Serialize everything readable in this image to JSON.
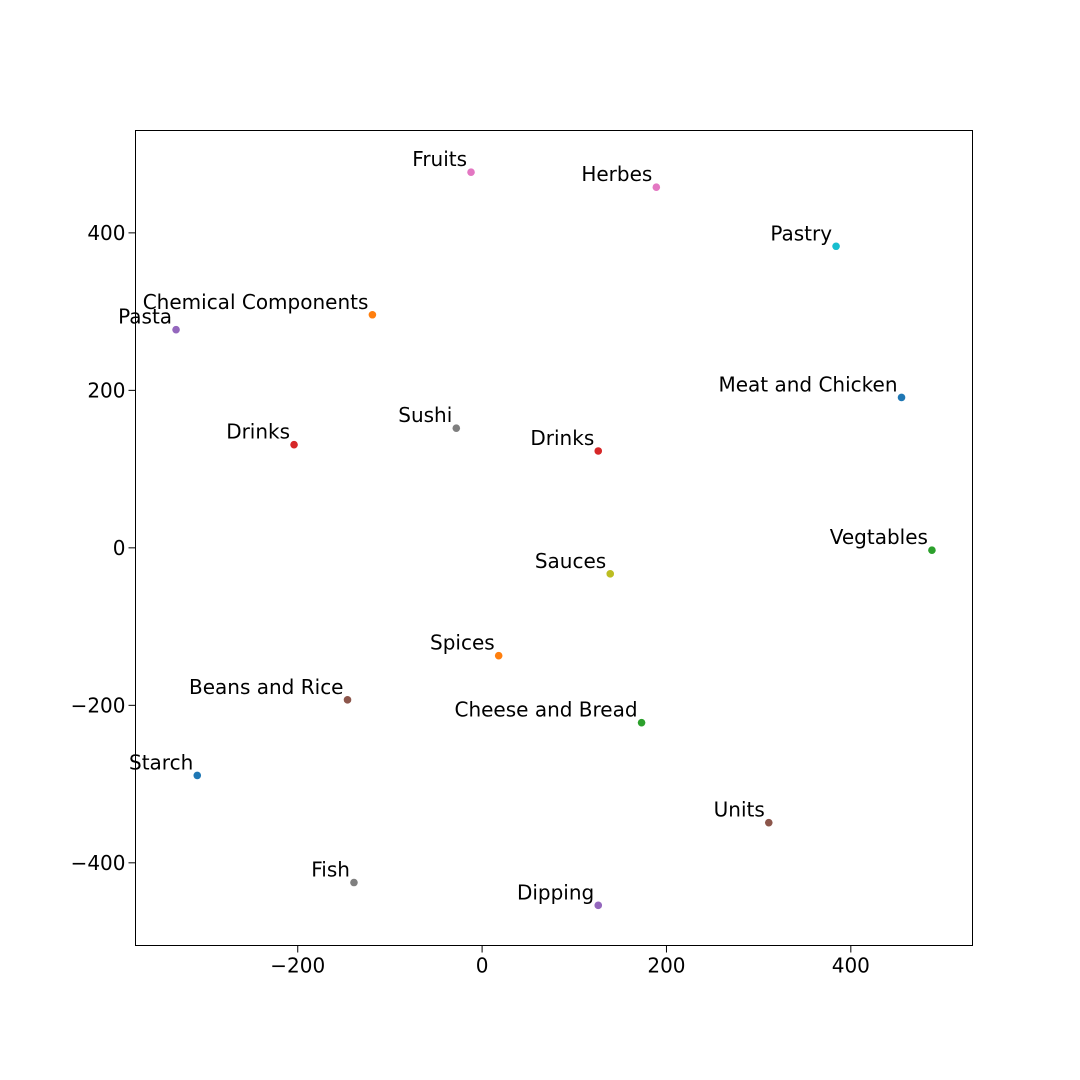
{
  "chart_data": {
    "type": "scatter",
    "title": "",
    "xlabel": "",
    "ylabel": "",
    "xlim": [
      -376,
      532
    ],
    "ylim": [
      -505,
      530
    ],
    "xticks": [
      -200,
      0,
      200,
      400
    ],
    "yticks": [
      -400,
      -200,
      0,
      200,
      400
    ],
    "xtick_labels": [
      "−200",
      "0",
      "200",
      "400"
    ],
    "ytick_labels": [
      "−400",
      "−200",
      "0",
      "200",
      "400"
    ],
    "grid": false,
    "legend": "none",
    "points": [
      {
        "label": "Fruits",
        "x": -12,
        "y": 477,
        "color": "#e377c2"
      },
      {
        "label": "Herbes",
        "x": 189,
        "y": 458,
        "color": "#e377c2"
      },
      {
        "label": "Pastry",
        "x": 384,
        "y": 383,
        "color": "#17becf"
      },
      {
        "label": "Chemical Components",
        "x": -119,
        "y": 296,
        "color": "#ff7f0e"
      },
      {
        "label": "Pasta",
        "x": -332,
        "y": 277,
        "color": "#9467bd"
      },
      {
        "label": "Meat and Chicken",
        "x": 455,
        "y": 191,
        "color": "#1f77b4"
      },
      {
        "label": "Sushi",
        "x": -28,
        "y": 152,
        "color": "#7f7f7f"
      },
      {
        "label": "Drinks",
        "x": -204,
        "y": 131,
        "color": "#d62728"
      },
      {
        "label": "Drinks",
        "x": 126,
        "y": 123,
        "color": "#d62728"
      },
      {
        "label": "Vegtables",
        "x": 488,
        "y": -3,
        "color": "#2ca02c"
      },
      {
        "label": "Sauces",
        "x": 139,
        "y": -33,
        "color": "#bcbd22"
      },
      {
        "label": "Spices",
        "x": 18,
        "y": -137,
        "color": "#ff7f0e"
      },
      {
        "label": "Beans and Rice",
        "x": -146,
        "y": -193,
        "color": "#8c564b"
      },
      {
        "label": "Cheese and Bread",
        "x": 173,
        "y": -222,
        "color": "#2ca02c"
      },
      {
        "label": "Starch",
        "x": -309,
        "y": -289,
        "color": "#1f77b4"
      },
      {
        "label": "Units",
        "x": 311,
        "y": -349,
        "color": "#8c564b"
      },
      {
        "label": "Fish",
        "x": -139,
        "y": -425,
        "color": "#7f7f7f"
      },
      {
        "label": "Dipping",
        "x": 126,
        "y": -454,
        "color": "#9467bd"
      }
    ]
  }
}
